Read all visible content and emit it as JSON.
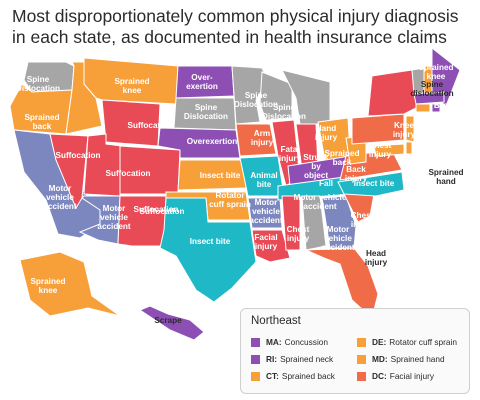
{
  "title": "Most disproportionately common physical injury diagnosis in each state, as documented in health insurance claims",
  "colors": {
    "purple": "#8e4fb5",
    "orange": "#f7a03a",
    "red": "#e84a56",
    "coral": "#f06b47",
    "teal": "#1fb8c6",
    "slate": "#7d87bf",
    "gray": "#a6a6a6",
    "line": "#ffffff"
  },
  "labels": [
    {
      "text": [
        "Spine",
        "Dislocation"
      ]
    },
    {
      "text": [
        "Sprained",
        "knee"
      ]
    },
    {
      "text": [
        "Over-",
        "exertion"
      ]
    },
    {
      "text": [
        "Spine",
        "Dislocation"
      ]
    },
    {
      "text": [
        "Spine",
        "Dislocation"
      ]
    },
    {
      "text": [
        "Spine",
        "Dislocation"
      ]
    },
    {
      "text": [
        "Sprained",
        "back"
      ]
    },
    {
      "text": [
        "Suffocation"
      ]
    },
    {
      "text": [
        "Suffocation"
      ]
    },
    {
      "text": [
        "Suffocation"
      ]
    },
    {
      "text": [
        "Suffocation"
      ]
    },
    {
      "text": [
        "Overexertion"
      ]
    },
    {
      "text": [
        "Arm",
        "injury"
      ]
    },
    {
      "text": [
        "Fatal",
        "injury"
      ]
    },
    {
      "text": [
        "Hand",
        "injury"
      ]
    },
    {
      "text": [
        "Sprained",
        "back"
      ]
    },
    {
      "text": [
        "Knee",
        "injury"
      ]
    },
    {
      "text": [
        "Spine",
        "dislocation"
      ]
    },
    {
      "text": [
        "Sprained",
        "knee"
      ]
    },
    {
      "text": [
        "Broken",
        "ankle"
      ]
    },
    {
      "text": [
        "Chest",
        "injury"
      ]
    },
    {
      "text": [
        "Sprained",
        "hand"
      ]
    },
    {
      "text": [
        "Struck",
        "by",
        "object"
      ]
    },
    {
      "text": [
        "Fall"
      ]
    },
    {
      "text": [
        "Back",
        "injury"
      ]
    },
    {
      "text": [
        "Insect bite"
      ]
    },
    {
      "text": [
        "Animal",
        "bite"
      ]
    },
    {
      "text": [
        "Insect bite"
      ]
    },
    {
      "text": [
        "Motor",
        "vehicle",
        "accident"
      ]
    },
    {
      "text": [
        "Motor",
        "vehicle",
        "accident"
      ]
    },
    {
      "text": [
        "Suffocation"
      ]
    },
    {
      "text": [
        "Rotator",
        "cuff sprain"
      ]
    },
    {
      "text": [
        "Motor",
        "vehicle",
        "accident"
      ]
    },
    {
      "text": [
        "Motor vehicle",
        "accident"
      ]
    },
    {
      "text": [
        "Chest",
        "injury"
      ]
    },
    {
      "text": [
        "Insect bite"
      ]
    },
    {
      "text": [
        "Chest",
        "injury"
      ]
    },
    {
      "text": [
        "Facial",
        "injury"
      ]
    },
    {
      "text": [
        "Motor",
        "vehicle",
        "accident"
      ]
    },
    {
      "text": [
        "Head",
        "injury"
      ]
    },
    {
      "text": [
        "Sprained",
        "knee"
      ]
    },
    {
      "text": [
        "Scrape"
      ]
    }
  ],
  "legend": {
    "title": "Northeast",
    "items": [
      {
        "abbr": "MA:",
        "label": "Concussion",
        "color": "#8e4fb5"
      },
      {
        "abbr": "DE:",
        "label": "Rotator cuff sprain",
        "color": "#f7a03a"
      },
      {
        "abbr": "RI:",
        "label": "Sprained neck",
        "color": "#8e4fb5"
      },
      {
        "abbr": "MD:",
        "label": "Sprained hand",
        "color": "#f7a03a"
      },
      {
        "abbr": "CT:",
        "label": "Sprained back",
        "color": "#f7a03a"
      },
      {
        "abbr": "DC:",
        "label": "Facial injury",
        "color": "#f06b47"
      }
    ]
  }
}
